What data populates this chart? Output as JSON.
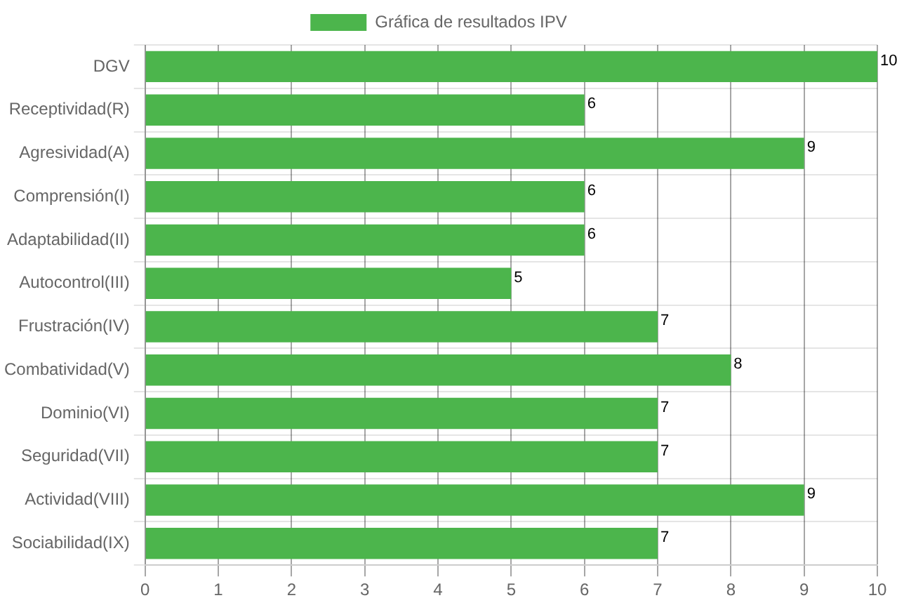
{
  "chart_data": {
    "type": "bar",
    "orientation": "horizontal",
    "categories": [
      "DGV",
      "Receptividad(R)",
      "Agresividad(A)",
      "Comprensión(I)",
      "Adaptabilidad(II)",
      "Autocontrol(III)",
      "Frustración(IV)",
      "Combatividad(V)",
      "Dominio(VI)",
      "Seguridad(VII)",
      "Actividad(VIII)",
      "Sociabilidad(IX)"
    ],
    "series": [
      {
        "name": "Gráfica de resultados IPV",
        "color": "#4cb54c",
        "values": [
          10,
          6,
          9,
          6,
          6,
          5,
          7,
          8,
          7,
          7,
          9,
          7
        ]
      }
    ],
    "xlim": [
      0,
      10
    ],
    "xticks": [
      0,
      1,
      2,
      3,
      4,
      5,
      6,
      7,
      8,
      9,
      10
    ],
    "grid": true,
    "legend": "top",
    "data_labels": true
  }
}
